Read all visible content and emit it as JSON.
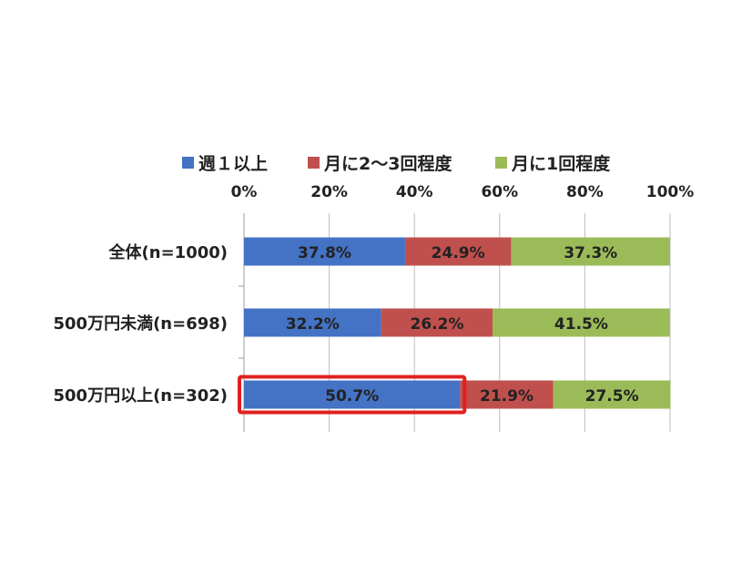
{
  "chart_data": {
    "type": "bar",
    "orientation": "horizontal",
    "stacked": "percent",
    "categories": [
      "全体(n=1000)",
      "500万円未満(n=698)",
      "500万円以上(n=302)"
    ],
    "series": [
      {
        "name": "週１以上",
        "values": [
          37.8,
          32.2,
          50.7
        ],
        "color": "#4472c4"
      },
      {
        "name": "月に2～3回程度",
        "values": [
          24.9,
          26.2,
          21.9
        ],
        "color": "#c0504d"
      },
      {
        "name": "月に1回程度",
        "values": [
          37.3,
          41.5,
          27.5
        ],
        "color": "#9bbb59"
      }
    ],
    "data_labels": [
      [
        "37.8%",
        "24.9%",
        "37.3%"
      ],
      [
        "32.2%",
        "26.2%",
        "41.5%"
      ],
      [
        "50.7%",
        "21.9%",
        "27.5%"
      ]
    ],
    "xticks": [
      "0%",
      "20%",
      "40%",
      "60%",
      "80%",
      "100%"
    ],
    "xlim": [
      0,
      100
    ],
    "legend_position": "top",
    "grid": true,
    "highlight": {
      "category_index": 2,
      "series_index": 0,
      "color": "#e02020"
    }
  }
}
